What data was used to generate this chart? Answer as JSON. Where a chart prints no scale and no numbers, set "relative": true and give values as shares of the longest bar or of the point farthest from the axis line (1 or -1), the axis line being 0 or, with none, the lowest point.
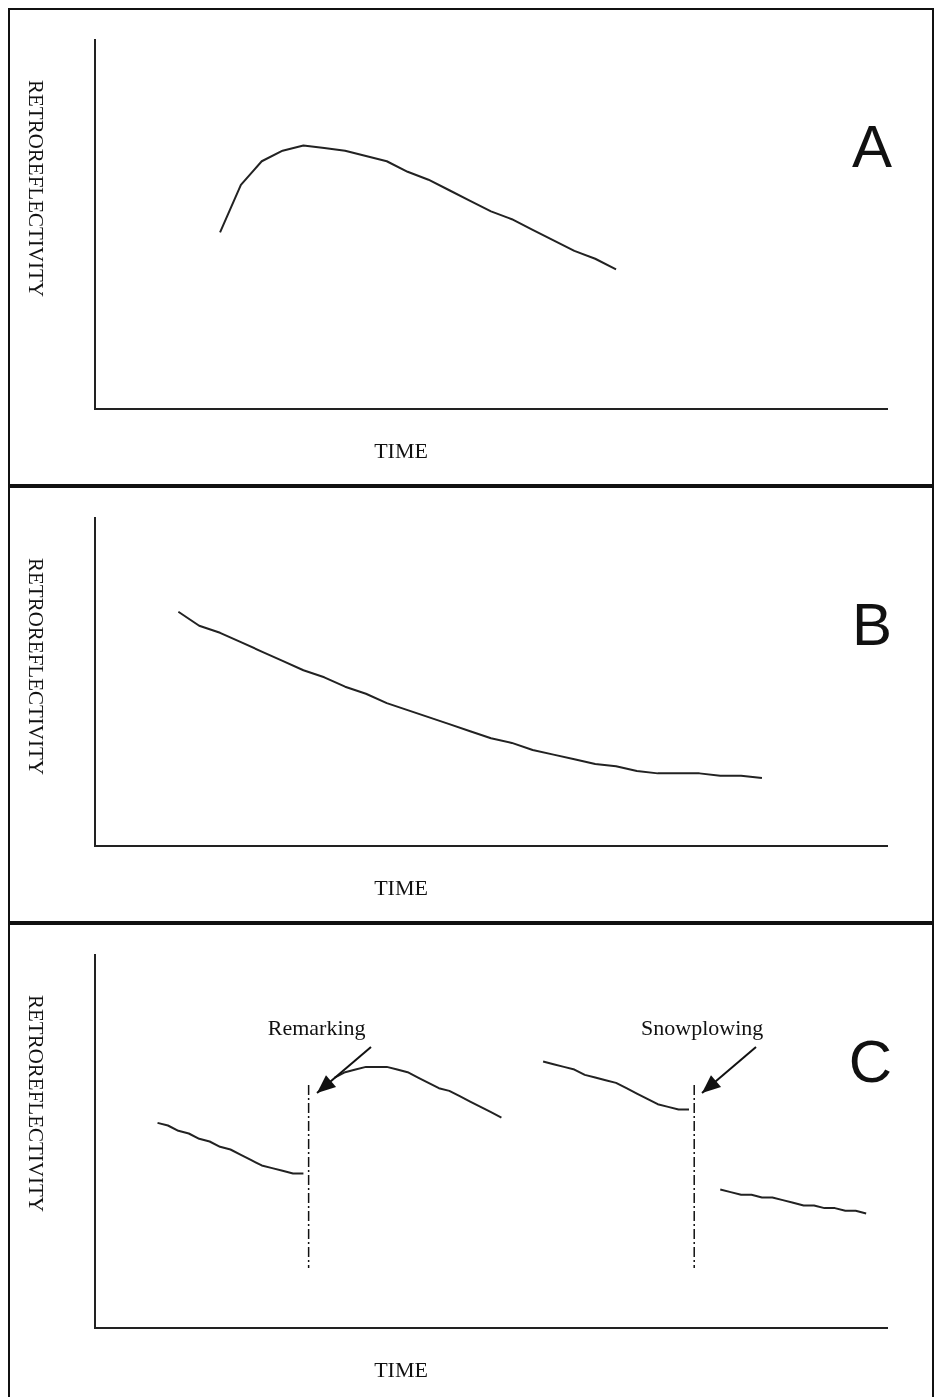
{
  "chart_data": [
    {
      "type": "line",
      "title": "A",
      "xlabel": "TIME",
      "ylabel": "RETROREFLECTIVITY",
      "relative": true,
      "color": "#222222",
      "categories": [
        null,
        null,
        null,
        null,
        null,
        null,
        null,
        null,
        null,
        null,
        null,
        null,
        null,
        null,
        null,
        null,
        null,
        null,
        null,
        null,
        null,
        null,
        null,
        null,
        null,
        null,
        null,
        null,
        null,
        null,
        null,
        null,
        null,
        null,
        null,
        null,
        null,
        null,
        null
      ],
      "values": [
        null,
        null,
        null,
        null,
        null,
        null,
        0.67,
        0.85,
        0.94,
        0.98,
        1.0,
        0.99,
        0.98,
        0.96,
        0.94,
        0.9,
        0.87,
        0.83,
        0.79,
        0.75,
        0.72,
        0.68,
        0.64,
        0.6,
        0.57,
        0.53,
        null,
        null,
        null,
        null,
        null,
        null,
        null,
        null,
        null,
        null,
        null,
        null,
        null
      ]
    },
    {
      "type": "line",
      "title": "B",
      "xlabel": "TIME",
      "ylabel": "RETROREFLECTIVITY",
      "relative": true,
      "color": "#222222",
      "categories": [
        null,
        null,
        null,
        null,
        null,
        null,
        null,
        null,
        null,
        null,
        null,
        null,
        null,
        null,
        null,
        null,
        null,
        null,
        null,
        null,
        null,
        null,
        null,
        null,
        null,
        null,
        null,
        null,
        null,
        null,
        null,
        null,
        null,
        null,
        null,
        null,
        null,
        null,
        null
      ],
      "values": [
        null,
        null,
        null,
        null,
        1.0,
        0.94,
        0.91,
        0.87,
        0.83,
        0.79,
        0.75,
        0.72,
        0.68,
        0.65,
        0.61,
        0.58,
        0.55,
        0.52,
        0.49,
        0.46,
        0.44,
        0.41,
        0.39,
        0.37,
        0.35,
        0.34,
        0.32,
        0.31,
        0.31,
        0.31,
        0.3,
        0.3,
        0.29,
        null,
        null,
        null,
        null,
        null,
        null
      ]
    },
    {
      "type": "line",
      "title": "C",
      "xlabel": "TIME",
      "ylabel": "RETROREFLECTIVITY",
      "relative": true,
      "annotations": [
        "Remarking",
        "Snowplowing"
      ],
      "categories": [
        null,
        null,
        null,
        null,
        null,
        null,
        null,
        null,
        null,
        null,
        null,
        null,
        null,
        null,
        null,
        null,
        null,
        null,
        null,
        null,
        null,
        null,
        null,
        null,
        null,
        null,
        null,
        null,
        null,
        null,
        null,
        null,
        null,
        null,
        null,
        null,
        null,
        null,
        null,
        null,
        null,
        null,
        null,
        null,
        null,
        null,
        null,
        null,
        null,
        null,
        null,
        null,
        null,
        null,
        null,
        null,
        null,
        null,
        null,
        null,
        null,
        null,
        null,
        null,
        null,
        null,
        null,
        null,
        null,
        null,
        null,
        null,
        null,
        null,
        null,
        null,
        null
      ],
      "series": [
        {
          "color": "#222222",
          "values": [
            null,
            null,
            null,
            null,
            null,
            null,
            0.77,
            0.76,
            0.74,
            0.73,
            0.71,
            0.7,
            0.68,
            0.67,
            0.65,
            0.63,
            0.61,
            0.6,
            0.59,
            0.58,
            0.58,
            null,
            null,
            null,
            null,
            null,
            null,
            null,
            null,
            null,
            null,
            null,
            null,
            null,
            null,
            null,
            null,
            null,
            null,
            null,
            null,
            null,
            null,
            null,
            null,
            null,
            null,
            null,
            null,
            null,
            null,
            null,
            null,
            null,
            null,
            null,
            null,
            null,
            null,
            null,
            null,
            null,
            null,
            null,
            null,
            null,
            null,
            null,
            null,
            null,
            null,
            null,
            null,
            null,
            null,
            null,
            null
          ]
        },
        {
          "color": "#222222",
          "values": [
            null,
            null,
            null,
            null,
            null,
            null,
            null,
            null,
            null,
            null,
            null,
            null,
            null,
            null,
            null,
            null,
            null,
            null,
            null,
            null,
            null,
            null,
            null,
            0.94,
            0.96,
            0.97,
            0.98,
            0.98,
            0.98,
            0.97,
            0.96,
            0.94,
            0.92,
            0.9,
            0.89,
            0.87,
            0.85,
            0.83,
            0.81,
            0.79,
            null,
            null,
            null,
            null,
            null,
            null,
            null,
            null,
            null,
            null,
            null,
            null,
            null,
            null,
            null,
            null,
            null,
            null,
            null,
            null,
            null,
            null,
            null,
            null,
            null,
            null,
            null,
            null,
            null,
            null,
            null,
            null,
            null,
            null,
            null,
            null,
            null
          ]
        },
        {
          "color": "#222222",
          "values": [
            null,
            null,
            null,
            null,
            null,
            null,
            null,
            null,
            null,
            null,
            null,
            null,
            null,
            null,
            null,
            null,
            null,
            null,
            null,
            null,
            null,
            null,
            null,
            null,
            null,
            null,
            null,
            null,
            null,
            null,
            null,
            null,
            null,
            null,
            null,
            null,
            null,
            null,
            null,
            null,
            null,
            null,
            null,
            1.0,
            0.99,
            0.98,
            0.97,
            0.95,
            0.94,
            0.93,
            0.92,
            0.9,
            0.88,
            0.86,
            0.84,
            0.83,
            0.82,
            0.82,
            null,
            null,
            null,
            null,
            null,
            null,
            null,
            null,
            null,
            null,
            null,
            null,
            null,
            null,
            null,
            null,
            null,
            null,
            null
          ]
        },
        {
          "color": "#222222",
          "values": [
            null,
            null,
            null,
            null,
            null,
            null,
            null,
            null,
            null,
            null,
            null,
            null,
            null,
            null,
            null,
            null,
            null,
            null,
            null,
            null,
            null,
            null,
            null,
            null,
            null,
            null,
            null,
            null,
            null,
            null,
            null,
            null,
            null,
            null,
            null,
            null,
            null,
            null,
            null,
            null,
            null,
            null,
            null,
            null,
            null,
            null,
            null,
            null,
            null,
            null,
            null,
            null,
            null,
            null,
            null,
            null,
            null,
            null,
            null,
            null,
            0.52,
            0.51,
            0.5,
            0.5,
            0.49,
            0.49,
            0.48,
            0.47,
            0.46,
            0.46,
            0.45,
            0.45,
            0.44,
            0.44,
            0.43,
            null,
            null
          ]
        }
      ]
    }
  ]
}
